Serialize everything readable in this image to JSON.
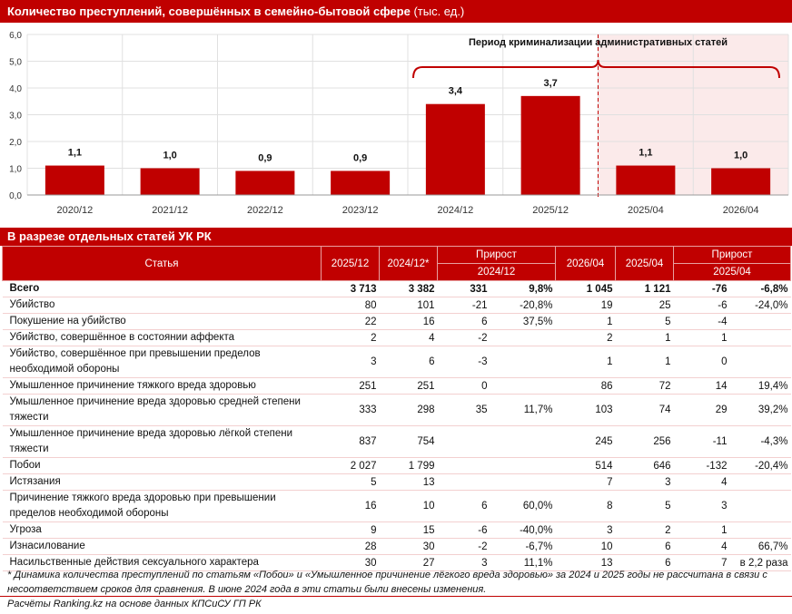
{
  "chart": {
    "title": "Количество преступлений, совершённых в семейно-бытовой сфере",
    "title_unit": "(тыс. ед.)",
    "annotation": "Период криминализации административных статей"
  },
  "chart_data": {
    "type": "bar",
    "title": "Количество преступлений, совершённых в семейно-бытовой сфере (тыс. ед.)",
    "categories": [
      "2020/12",
      "2021/12",
      "2022/12",
      "2023/12",
      "2024/12",
      "2025/12",
      "2025/04",
      "2026/04"
    ],
    "values": [
      1.1,
      1.0,
      0.9,
      0.9,
      3.4,
      3.7,
      1.1,
      1.0
    ],
    "value_labels": [
      "1,1",
      "1,0",
      "0,9",
      "0,9",
      "3,4",
      "3,7",
      "1,1",
      "1,0"
    ],
    "yticks": [
      "0,0",
      "1,0",
      "2,0",
      "3,0",
      "4,0",
      "5,0",
      "6,0"
    ],
    "ylim": [
      0,
      6
    ],
    "grid": true,
    "bar_color": "#c00000",
    "shaded_categories": [
      "2025/04",
      "2026/04"
    ],
    "shade_color": "#fbeaea",
    "bracket_categories": [
      "2024/12",
      "2025/12",
      "2025/04",
      "2026/04"
    ]
  },
  "table": {
    "title": "В разрезе отдельных статей УК РК",
    "headers": {
      "article": "Статья",
      "y2025_12": "2025/12",
      "y2024_12": "2024/12*",
      "growth1": "Прирост",
      "growth1_base": "2024/12",
      "y2026_04": "2026/04",
      "y2025_04": "2025/04",
      "growth2": "Прирост",
      "growth2_base": "2025/04"
    },
    "rows": [
      {
        "name": "Всего",
        "a": "3 713",
        "b": "3 382",
        "c": "331",
        "d": "9,8%",
        "e": "1 045",
        "f": "1 121",
        "g": "-76",
        "h": "-6,8%"
      },
      {
        "name": "Убийство",
        "a": "80",
        "b": "101",
        "c": "-21",
        "d": "-20,8%",
        "e": "19",
        "f": "25",
        "g": "-6",
        "h": "-24,0%"
      },
      {
        "name": "Покушение на убийство",
        "a": "22",
        "b": "16",
        "c": "6",
        "d": "37,5%",
        "e": "1",
        "f": "5",
        "g": "-4",
        "h": ""
      },
      {
        "name": "Убийство, совершённое в состоянии аффекта",
        "a": "2",
        "b": "4",
        "c": "-2",
        "d": "",
        "e": "2",
        "f": "1",
        "g": "1",
        "h": ""
      },
      {
        "name": "Убийство, совершённое при превышении пределов необходимой обороны",
        "a": "3",
        "b": "6",
        "c": "-3",
        "d": "",
        "e": "1",
        "f": "1",
        "g": "0",
        "h": ""
      },
      {
        "name": "Умышленное причинение тяжкого вреда здоровью",
        "a": "251",
        "b": "251",
        "c": "0",
        "d": "",
        "e": "86",
        "f": "72",
        "g": "14",
        "h": "19,4%"
      },
      {
        "name": "Умышленное причинение вреда здоровью средней степени тяжести",
        "a": "333",
        "b": "298",
        "c": "35",
        "d": "11,7%",
        "e": "103",
        "f": "74",
        "g": "29",
        "h": "39,2%"
      },
      {
        "name": "Умышленное причинение вреда здоровью лёгкой степени тяжести",
        "a": "837",
        "b": "754",
        "c": "",
        "d": "",
        "e": "245",
        "f": "256",
        "g": "-11",
        "h": "-4,3%"
      },
      {
        "name": "Побои",
        "a": "2 027",
        "b": "1 799",
        "c": "",
        "d": "",
        "e": "514",
        "f": "646",
        "g": "-132",
        "h": "-20,4%"
      },
      {
        "name": "Истязания",
        "a": "5",
        "b": "13",
        "c": "",
        "d": "",
        "e": "7",
        "f": "3",
        "g": "4",
        "h": ""
      },
      {
        "name": "Причинение тяжкого вреда здоровью при превышении пределов необходимой обороны",
        "a": "16",
        "b": "10",
        "c": "6",
        "d": "60,0%",
        "e": "8",
        "f": "5",
        "g": "3",
        "h": ""
      },
      {
        "name": "Угроза",
        "a": "9",
        "b": "15",
        "c": "-6",
        "d": "-40,0%",
        "e": "3",
        "f": "2",
        "g": "1",
        "h": ""
      },
      {
        "name": "Изнасилование",
        "a": "28",
        "b": "30",
        "c": "-2",
        "d": "-6,7%",
        "e": "10",
        "f": "6",
        "g": "4",
        "h": "66,7%"
      },
      {
        "name": "Насильственные действия сексуального характера",
        "a": "30",
        "b": "27",
        "c": "3",
        "d": "11,1%",
        "e": "13",
        "f": "6",
        "g": "7",
        "h": "в 2,2 раза"
      }
    ]
  },
  "footnote": "* Динамика количества преступлений по статьям «Побои» и «Умышленное причинение лёгкого вреда здоровью» за 2024 и 2025 годы не рассчитана в связи с несоответствием сроков для сравнения. В июне 2024 года в эти статьи были внесены изменения.",
  "source": "Расчёты Ranking.kz на основе данных КПСиСУ ГП РК"
}
